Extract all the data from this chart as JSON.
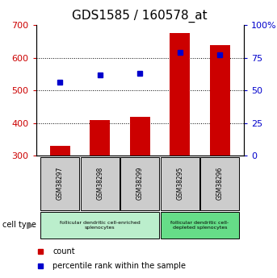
{
  "title": "GDS1585 / 160578_at",
  "samples": [
    "GSM38297",
    "GSM38298",
    "GSM38299",
    "GSM38295",
    "GSM38296"
  ],
  "counts": [
    330,
    410,
    420,
    675,
    638
  ],
  "percentiles": [
    56,
    62,
    63,
    79,
    77
  ],
  "ymin": 300,
  "ymax": 700,
  "yticks_left": [
    300,
    400,
    500,
    600,
    700
  ],
  "yticks_right": [
    0,
    25,
    50,
    75,
    100
  ],
  "bar_color": "#cc0000",
  "marker_color": "#0000cc",
  "bar_width": 0.5,
  "group1_label": "follicular dendritic cell-enriched\nsplenocytes",
  "group2_label": "follicular dendritic cell-\ndepleted splenocytes",
  "group1_color": "#bbeecc",
  "group2_color": "#66dd88",
  "sample_box_color": "#cccccc",
  "cell_type_label": "cell type",
  "legend_count": "count",
  "legend_percentile": "percentile rank within the sample",
  "axis_color_left": "#cc0000",
  "axis_color_right": "#0000cc",
  "title_fontsize": 11,
  "bg_color": "#ffffff"
}
